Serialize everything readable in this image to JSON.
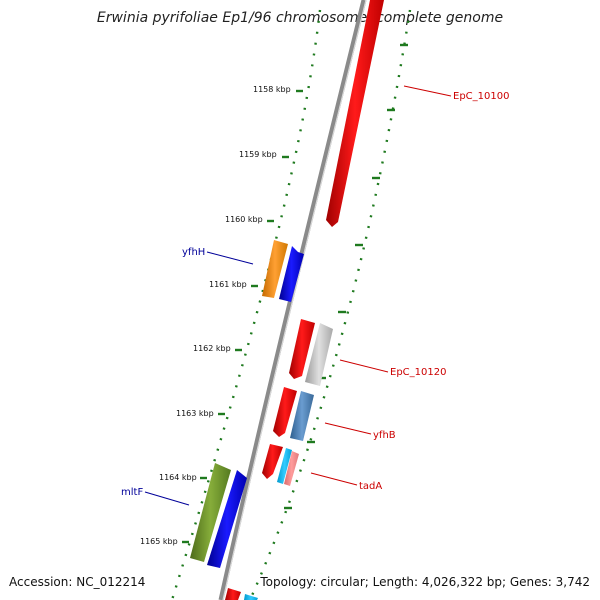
{
  "title": "Erwinia pyrifoliae Ep1/96 chromosome, complete genome",
  "footer": {
    "accession": "Accession: NC_012214",
    "summary": "Topology: circular; Length: 4,026,322 bp; Genes: 3,742"
  },
  "colors": {
    "backbone": "#8a8a8a",
    "gc_ticks": "#1f7a1f",
    "label_red": "#cc0000",
    "label_blue": "#000099"
  },
  "kbp_labels": [
    "1158 kbp",
    "1159 kbp",
    "1160 kbp",
    "1161 kbp",
    "1162 kbp",
    "1163 kbp",
    "1164 kbp",
    "1165 kbp"
  ],
  "gene_labels": [
    {
      "text": "EpC_10100",
      "color": "red"
    },
    {
      "text": "yfhH",
      "color": "blue"
    },
    {
      "text": "EpC_10120",
      "color": "red"
    },
    {
      "text": "yfhB",
      "color": "red"
    },
    {
      "text": "tadA",
      "color": "red"
    },
    {
      "text": "mltF",
      "color": "blue"
    }
  ]
}
